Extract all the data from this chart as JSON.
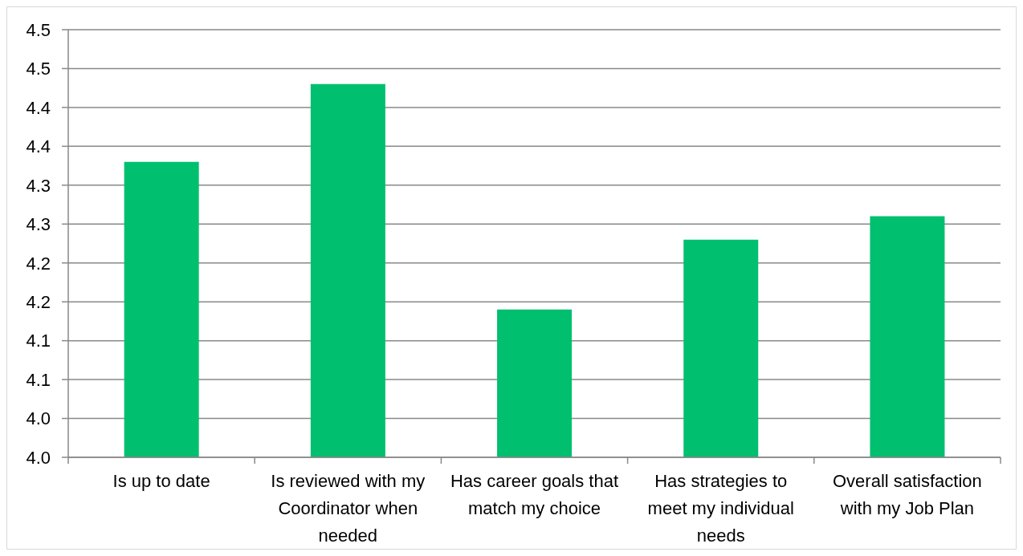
{
  "chart_data": {
    "type": "bar",
    "categories": [
      "Is up to date",
      "Is reviewed with my Coordinator when needed",
      "Has career goals that match my choice",
      "Has strategies to meet my individual needs",
      "Overall satisfaction with my Job Plan"
    ],
    "values": [
      4.38,
      4.48,
      4.19,
      4.28,
      4.31
    ],
    "color": "#00bf6f",
    "ylim": [
      4,
      4.55
    ],
    "yticks": [
      {
        "value": 4,
        "label": "4.0"
      },
      {
        "value": 4.05,
        "label": "4.0"
      },
      {
        "value": 4.1,
        "label": "4.1"
      },
      {
        "value": 4.15,
        "label": "4.1"
      },
      {
        "value": 4.2,
        "label": "4.2"
      },
      {
        "value": 4.25,
        "label": "4.2"
      },
      {
        "value": 4.3,
        "label": "4.3"
      },
      {
        "value": 4.35,
        "label": "4.3"
      },
      {
        "value": 4.4,
        "label": "4.4"
      },
      {
        "value": 4.45,
        "label": "4.4"
      },
      {
        "value": 4.5,
        "label": "4.5"
      },
      {
        "value": 4.55,
        "label": "4.5"
      }
    ],
    "grid": "y"
  }
}
